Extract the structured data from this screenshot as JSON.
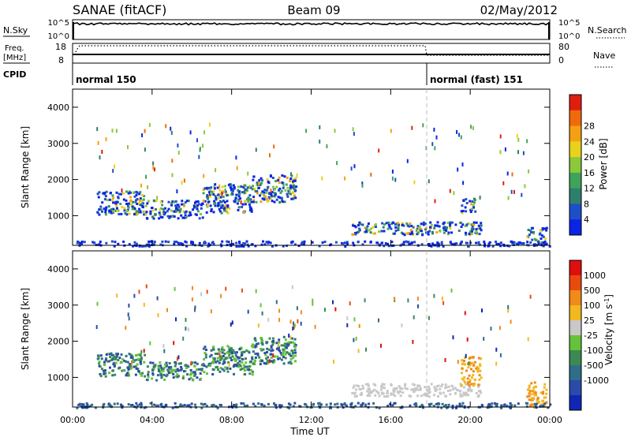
{
  "header": {
    "title": "SANAE (fitACF)",
    "beam": "Beam 09",
    "date": "02/May/2012"
  },
  "status_panels": {
    "nsky_label": "N.Sky",
    "nsky_ticks": [
      "10^5",
      "10^0"
    ],
    "nsearch_label": "N.Search",
    "nsearch_ticks": [
      "10^5",
      "10^0"
    ],
    "freq_label": "Freq.",
    "freq_unit": "[MHz]",
    "freq_ticks": [
      "18",
      "8"
    ],
    "nave_label": "Nave",
    "nave_ticks": [
      "80",
      "0"
    ],
    "cpid_label": "CPID",
    "cpid_modes": [
      {
        "label": "normal 150",
        "start_hour": 0
      },
      {
        "label": "normal (fast) 151",
        "start_hour": 18
      }
    ]
  },
  "chart_data": [
    {
      "type": "heatmap",
      "name": "power",
      "ylabel": "Slant Range [km]",
      "xlim": [
        0,
        24
      ],
      "ylim": [
        180,
        4500
      ],
      "yticks": [
        "1000",
        "2000",
        "3000",
        "4000"
      ],
      "colorbar": {
        "label": "Power [dB]",
        "ticks": [
          "4",
          "8",
          "12",
          "16",
          "20",
          "24",
          "28"
        ],
        "colors": [
          "#0a24e6",
          "#1f4fc8",
          "#2f7f6e",
          "#3fa35a",
          "#8cc83c",
          "#e8d21c",
          "#f5a012",
          "#f06a0c",
          "#e01e0e"
        ]
      },
      "echo_regions": [
        {
          "t0": 1.2,
          "t1": 3.6,
          "r0": 1050,
          "r1": 1700
        },
        {
          "t0": 3.6,
          "t1": 6.5,
          "r0": 950,
          "r1": 1450
        },
        {
          "t0": 6.5,
          "t1": 9.0,
          "r0": 1100,
          "r1": 1900
        },
        {
          "t0": 9.0,
          "t1": 11.2,
          "r0": 1400,
          "r1": 2150
        },
        {
          "t0": 14.0,
          "t1": 20.5,
          "r0": 500,
          "r1": 850
        },
        {
          "t0": 19.5,
          "t1": 20.2,
          "r0": 1100,
          "r1": 1500
        },
        {
          "t0": 22.8,
          "t1": 23.8,
          "r0": 200,
          "r1": 700
        },
        {
          "t0": 0.1,
          "t1": 24.0,
          "r0": 180,
          "r1": 320
        }
      ]
    },
    {
      "type": "heatmap",
      "name": "velocity",
      "xlabel": "Time UT",
      "ylabel": "Slant Range [km]",
      "xlim": [
        0,
        24
      ],
      "ylim": [
        180,
        4500
      ],
      "xticks": [
        "00:00",
        "04:00",
        "08:00",
        "12:00",
        "16:00",
        "20:00",
        "00:00"
      ],
      "yticks": [
        "1000",
        "2000",
        "3000",
        "4000"
      ],
      "colorbar": {
        "label": "Velocity [m s-1]",
        "unit_main": "Velocity  [m s",
        "unit_sup": "-1",
        "unit_close": "]",
        "ticks": [
          "1000",
          "500",
          "100",
          "25",
          "-25",
          "-100",
          "-500",
          "-1000"
        ],
        "colors": [
          "#1226b4",
          "#2a4ba8",
          "#2f6e8a",
          "#3c8a52",
          "#66c23a",
          "#c8c8c8",
          "#f2b820",
          "#f08a18",
          "#e84a10",
          "#e00e0e"
        ]
      },
      "echo_regions": [
        {
          "t0": 1.2,
          "t1": 3.6,
          "r0": 1050,
          "r1": 1700
        },
        {
          "t0": 3.6,
          "t1": 6.5,
          "r0": 950,
          "r1": 1450
        },
        {
          "t0": 6.5,
          "t1": 9.0,
          "r0": 1100,
          "r1": 1900
        },
        {
          "t0": 9.0,
          "t1": 11.2,
          "r0": 1400,
          "r1": 2150
        },
        {
          "t0": 14.0,
          "t1": 20.5,
          "r0": 500,
          "r1": 850
        },
        {
          "t0": 19.5,
          "t1": 20.5,
          "r0": 800,
          "r1": 1600
        },
        {
          "t0": 22.8,
          "t1": 23.8,
          "r0": 200,
          "r1": 900
        },
        {
          "t0": 0.1,
          "t1": 24.0,
          "r0": 180,
          "r1": 320
        }
      ]
    }
  ]
}
